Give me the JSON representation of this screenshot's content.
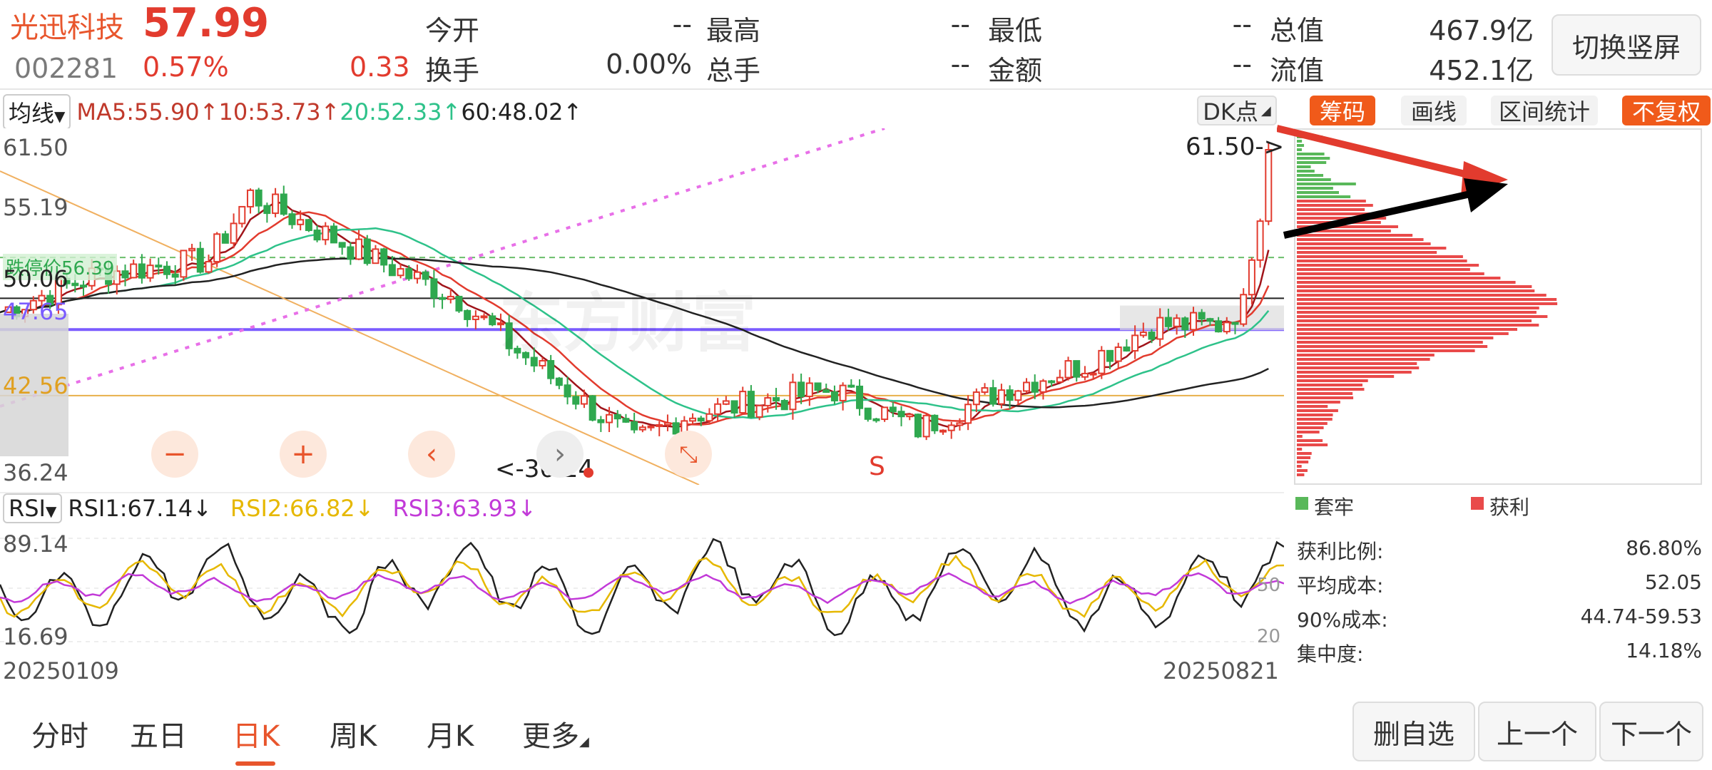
{
  "header": {
    "name": "光迅科技",
    "price": "57.99",
    "code": "002281",
    "pct": "0.57%",
    "change": "0.33",
    "quotes": [
      {
        "label": "今开",
        "value": "--"
      },
      {
        "label": "最高",
        "value": "--"
      },
      {
        "label": "最低",
        "value": "--"
      },
      {
        "label": "总值",
        "value": "467.9亿"
      },
      {
        "label": "换手",
        "value": "0.00%"
      },
      {
        "label": "总手",
        "value": "--"
      },
      {
        "label": "金额",
        "value": "--"
      },
      {
        "label": "流值",
        "value": "452.1亿"
      }
    ],
    "switch_button": "切换竖屏"
  },
  "ma_bar": {
    "selector": "均线",
    "ma5": "MA5:55.90↑",
    "ma10": "10:53.73↑",
    "ma20": "20:52.33↑",
    "ma60": "60:48.02↑",
    "dk_button": "DK点"
  },
  "right_tools": {
    "chip": "筹码",
    "draw": "画线",
    "interval": "区间统计",
    "adjust": "不复权"
  },
  "main_chart": {
    "y_labels": [
      "61.50",
      "55.19",
      "50.06",
      "47.65",
      "42.56",
      "36.24"
    ],
    "max_marker": "61.50->",
    "min_marker": "<-36.24",
    "ref_label": "跌停价56.39",
    "s_marker": "S",
    "watermark": "东方财富",
    "buttons": {
      "zoom_out": "−",
      "zoom_in": "+",
      "prev": "‹",
      "next": "›",
      "shrink": "⤡"
    }
  },
  "rsi": {
    "selector": "RSI",
    "rsi1": "RSI1:67.14↓",
    "rsi2": "RSI2:66.82↓",
    "rsi3": "RSI3:63.93↓",
    "top": "89.14",
    "bottom": "16.69",
    "mid_right": "50",
    "low_right": "20"
  },
  "dates": {
    "start": "20250109",
    "end": "20250821"
  },
  "chip_panel": {
    "legend_trapped": "套牢",
    "legend_profit": "获利",
    "stats": [
      {
        "label": "获利比例:",
        "value": "86.80%"
      },
      {
        "label": "平均成本:",
        "value": "52.05"
      },
      {
        "label": "90%成本:",
        "value": "44.74-59.53"
      },
      {
        "label": "集中度:",
        "value": "14.18%"
      }
    ]
  },
  "tabs": [
    "分时",
    "五日",
    "日K",
    "周K",
    "月K",
    "更多"
  ],
  "bottom_buttons": {
    "remove": "删自选",
    "prev": "上一个",
    "next": "下一个"
  },
  "colors": {
    "up": "#e23b2e",
    "down": "#2fa84f",
    "accent": "#f05a1a",
    "ma10": "#e23b2e",
    "ma20": "#2ec28a",
    "ma60": "#222222"
  }
}
